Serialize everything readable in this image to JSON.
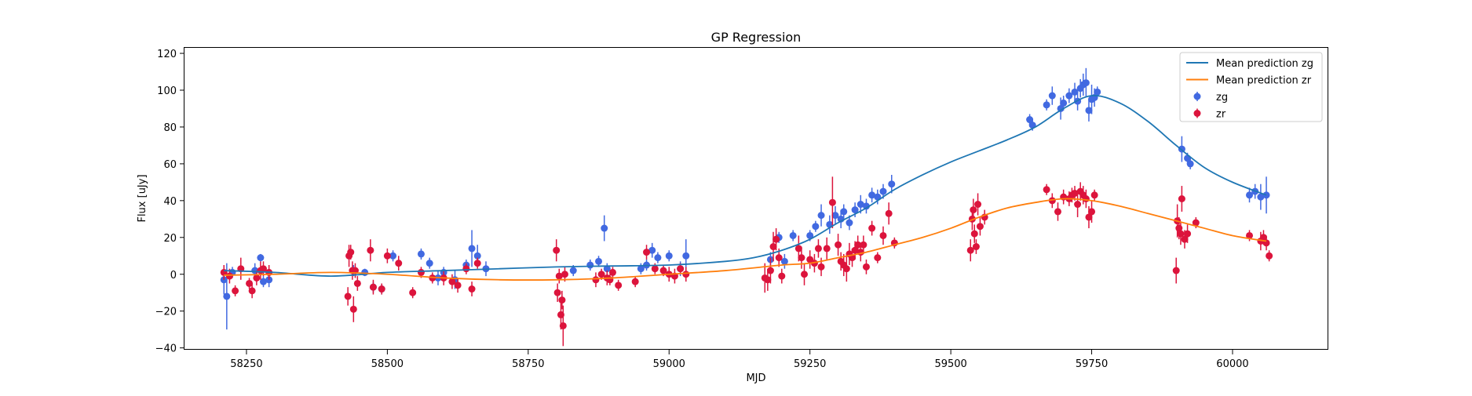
{
  "chart_data": {
    "type": "scatter",
    "title": "GP Regression",
    "xlabel": "MJD",
    "ylabel": "Flux [uJy]",
    "xlim": [
      58140,
      60170
    ],
    "ylim": [
      -41,
      123
    ],
    "xticks": [
      58250,
      58500,
      58750,
      59000,
      59250,
      59500,
      59750,
      60000
    ],
    "yticks": [
      -40,
      -20,
      0,
      20,
      40,
      60,
      80,
      100,
      120
    ],
    "grid": false,
    "legend_position": "top-right",
    "colors": {
      "line_zg": "#1f77b4",
      "line_zr": "#ff7f0e",
      "points_zg": "#4169e1",
      "points_zr": "#dc143c"
    },
    "series": [
      {
        "name": "Mean prediction zg",
        "kind": "line",
        "x": [
          58210,
          58300,
          58400,
          58500,
          58600,
          58700,
          58800,
          58900,
          59000,
          59100,
          59150,
          59200,
          59250,
          59300,
          59350,
          59400,
          59450,
          59500,
          59550,
          59600,
          59650,
          59700,
          59750,
          59800,
          59850,
          59900,
          59950,
          60000,
          60060
        ],
        "y": [
          2,
          1,
          -1,
          1,
          2,
          3,
          4,
          4.5,
          5,
          7,
          9,
          13,
          19,
          28,
          36,
          46,
          54,
          61,
          67,
          73,
          80,
          90,
          97,
          93,
          83,
          70,
          58,
          50,
          43
        ]
      },
      {
        "name": "Mean prediction zr",
        "kind": "line",
        "x": [
          58210,
          58300,
          58400,
          58500,
          58600,
          58700,
          58800,
          58900,
          59000,
          59100,
          59200,
          59250,
          59300,
          59350,
          59400,
          59450,
          59500,
          59550,
          59600,
          59650,
          59700,
          59750,
          59800,
          59850,
          59900,
          59950,
          60000,
          60060
        ],
        "y": [
          -0.5,
          0,
          1,
          0,
          -2,
          -3,
          -3,
          -2,
          0,
          2,
          5,
          6,
          9,
          12,
          16,
          20,
          25,
          31,
          36,
          39,
          41,
          40,
          37,
          33,
          29,
          25,
          21,
          18
        ]
      },
      {
        "name": "zg",
        "kind": "errorbar",
        "x": [
          58210,
          58215,
          58225,
          58265,
          58275,
          58280,
          58290,
          58440,
          58460,
          58475,
          58490,
          58510,
          58560,
          58575,
          58590,
          58600,
          58620,
          58640,
          58650,
          58660,
          58675,
          58830,
          58860,
          58875,
          58885,
          58890,
          58950,
          58960,
          58970,
          58980,
          59000,
          59020,
          59030,
          59180,
          59195,
          59205,
          59220,
          59250,
          59260,
          59270,
          59285,
          59295,
          59305,
          59310,
          59320,
          59330,
          59340,
          59350,
          59360,
          59370,
          59380,
          59395,
          59640,
          59645,
          59670,
          59680,
          59695,
          59700,
          59710,
          59720,
          59725,
          59730,
          59735,
          59740,
          59745,
          59750,
          59755,
          59760,
          59910,
          59920,
          59925,
          60030,
          60040,
          60050,
          60060
        ],
        "y": [
          -3,
          -12,
          1,
          2,
          9,
          -4,
          -3,
          2,
          1,
          -7,
          -8,
          10,
          11,
          6,
          -2,
          1,
          -3,
          5,
          14,
          10,
          3,
          2,
          5,
          7,
          25,
          3,
          3,
          5,
          13,
          9,
          10,
          3,
          10,
          8,
          20,
          7,
          21,
          21,
          26,
          32,
          27,
          32,
          30,
          34,
          28,
          35,
          38,
          37,
          43,
          42,
          45,
          49,
          84,
          81,
          92,
          97,
          90,
          93,
          97,
          99,
          94,
          101,
          103,
          104,
          89,
          95,
          96,
          99,
          68,
          63,
          60,
          43,
          45,
          42,
          43
        ],
        "err": [
          8,
          18,
          3,
          4,
          2,
          3,
          4,
          3,
          2,
          3,
          3,
          3,
          3,
          3,
          4,
          3,
          5,
          3,
          10,
          6,
          4,
          3,
          3,
          3,
          7,
          3,
          3,
          3,
          4,
          3,
          3,
          4,
          9,
          4,
          3,
          4,
          3,
          3,
          3,
          6,
          5,
          5,
          5,
          4,
          4,
          4,
          5,
          4,
          4,
          4,
          4,
          5,
          3,
          3,
          3,
          5,
          6,
          4,
          4,
          5,
          5,
          5,
          6,
          8,
          6,
          8,
          5,
          3,
          7,
          3,
          3,
          4,
          4,
          7,
          10
        ]
      },
      {
        "name": "zr",
        "kind": "errorbar",
        "x": [
          58210,
          58220,
          58230,
          58240,
          58255,
          58260,
          58268,
          58275,
          58280,
          58290,
          58430,
          58432,
          58435,
          58438,
          58440,
          58443,
          58447,
          58470,
          58475,
          58490,
          58500,
          58520,
          58545,
          58560,
          58580,
          58600,
          58615,
          58625,
          58640,
          58650,
          58660,
          58800,
          58802,
          58805,
          58808,
          58810,
          58812,
          58815,
          58870,
          58880,
          58890,
          58895,
          58900,
          58910,
          58940,
          58960,
          58975,
          58990,
          59000,
          59010,
          59020,
          59030,
          59170,
          59175,
          59180,
          59185,
          59190,
          59195,
          59200,
          59230,
          59235,
          59240,
          59250,
          59258,
          59265,
          59270,
          59280,
          59290,
          59300,
          59305,
          59310,
          59315,
          59320,
          59325,
          59330,
          59335,
          59340,
          59345,
          59350,
          59360,
          59370,
          59380,
          59390,
          59400,
          59535,
          59538,
          59540,
          59542,
          59545,
          59548,
          59552,
          59560,
          59670,
          59680,
          59690,
          59700,
          59710,
          59715,
          59720,
          59725,
          59730,
          59735,
          59740,
          59745,
          59750,
          59755,
          59900,
          59902,
          59905,
          59908,
          59910,
          59915,
          59920,
          59935,
          60030,
          60050,
          60055,
          60060,
          60065
        ],
        "y": [
          1,
          -1,
          -9,
          3,
          -5,
          -9,
          -2,
          2,
          3,
          1,
          -12,
          10,
          12,
          2,
          -19,
          2,
          -5,
          13,
          -7,
          -8,
          10,
          6,
          -10,
          1,
          -2,
          -2,
          -4,
          -6,
          3,
          -8,
          6,
          13,
          -10,
          -1,
          -22,
          -14,
          -28,
          0,
          -3,
          0,
          -2,
          -3,
          1,
          -6,
          -4,
          12,
          3,
          2,
          0,
          -1,
          3,
          0,
          -2,
          -3,
          2,
          15,
          19,
          9,
          -1,
          14,
          9,
          0,
          8,
          6,
          14,
          4,
          14,
          39,
          16,
          7,
          5,
          3,
          11,
          9,
          13,
          16,
          12,
          16,
          4,
          25,
          9,
          21,
          33,
          17,
          13,
          30,
          35,
          22,
          15,
          38,
          26,
          31,
          46,
          40,
          34,
          42,
          41,
          43,
          44,
          38,
          45,
          43,
          41,
          31,
          34,
          43,
          2,
          29,
          25,
          22,
          41,
          19,
          22,
          28,
          21,
          18,
          20,
          17,
          10
        ],
        "err": [
          4,
          4,
          3,
          6,
          3,
          4,
          4,
          5,
          4,
          4,
          5,
          6,
          4,
          5,
          7,
          4,
          4,
          6,
          4,
          3,
          4,
          4,
          3,
          3,
          3,
          4,
          4,
          4,
          3,
          4,
          3,
          6,
          5,
          4,
          8,
          5,
          11,
          4,
          4,
          3,
          4,
          3,
          3,
          3,
          3,
          4,
          3,
          3,
          4,
          4,
          3,
          4,
          8,
          6,
          7,
          8,
          6,
          5,
          4,
          7,
          6,
          6,
          5,
          5,
          5,
          5,
          6,
          14,
          6,
          5,
          6,
          7,
          6,
          5,
          5,
          5,
          5,
          5,
          4,
          4,
          3,
          5,
          6,
          3,
          6,
          6,
          6,
          5,
          4,
          6,
          5,
          4,
          3,
          4,
          5,
          4,
          4,
          4,
          4,
          7,
          5,
          5,
          5,
          6,
          6,
          3,
          7,
          9,
          6,
          6,
          7,
          5,
          5,
          3,
          3,
          5,
          4,
          4,
          3
        ]
      }
    ]
  }
}
